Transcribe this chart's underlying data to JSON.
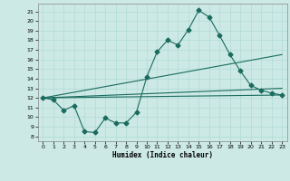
{
  "title": "",
  "xlabel": "Humidex (Indice chaleur)",
  "background_color": "#cce9e5",
  "line_color": "#1a6b5e",
  "xlim": [
    -0.5,
    23.5
  ],
  "ylim": [
    7.5,
    21.8
  ],
  "yticks": [
    8,
    9,
    10,
    11,
    12,
    13,
    14,
    15,
    16,
    17,
    18,
    19,
    20,
    21
  ],
  "xticks": [
    0,
    1,
    2,
    3,
    4,
    5,
    6,
    7,
    8,
    9,
    10,
    11,
    12,
    13,
    14,
    15,
    16,
    17,
    18,
    19,
    20,
    21,
    22,
    23
  ],
  "series1_x": [
    0,
    1,
    2,
    3,
    4,
    5,
    6,
    7,
    8,
    9,
    10,
    11,
    12,
    13,
    14,
    15,
    16,
    17,
    18,
    19,
    20,
    21,
    22,
    23
  ],
  "series1_y": [
    12.0,
    11.8,
    10.7,
    11.2,
    8.5,
    8.4,
    9.9,
    9.4,
    9.4,
    10.5,
    14.2,
    16.8,
    18.0,
    17.5,
    19.1,
    21.1,
    20.4,
    18.5,
    16.5,
    14.8,
    13.3,
    12.8,
    12.5,
    12.3
  ],
  "series2_x": [
    0,
    23
  ],
  "series2_y": [
    12.0,
    12.3
  ],
  "series3_x": [
    0,
    23
  ],
  "series3_y": [
    12.0,
    13.0
  ],
  "series4_x": [
    0,
    23
  ],
  "series4_y": [
    12.0,
    16.5
  ]
}
